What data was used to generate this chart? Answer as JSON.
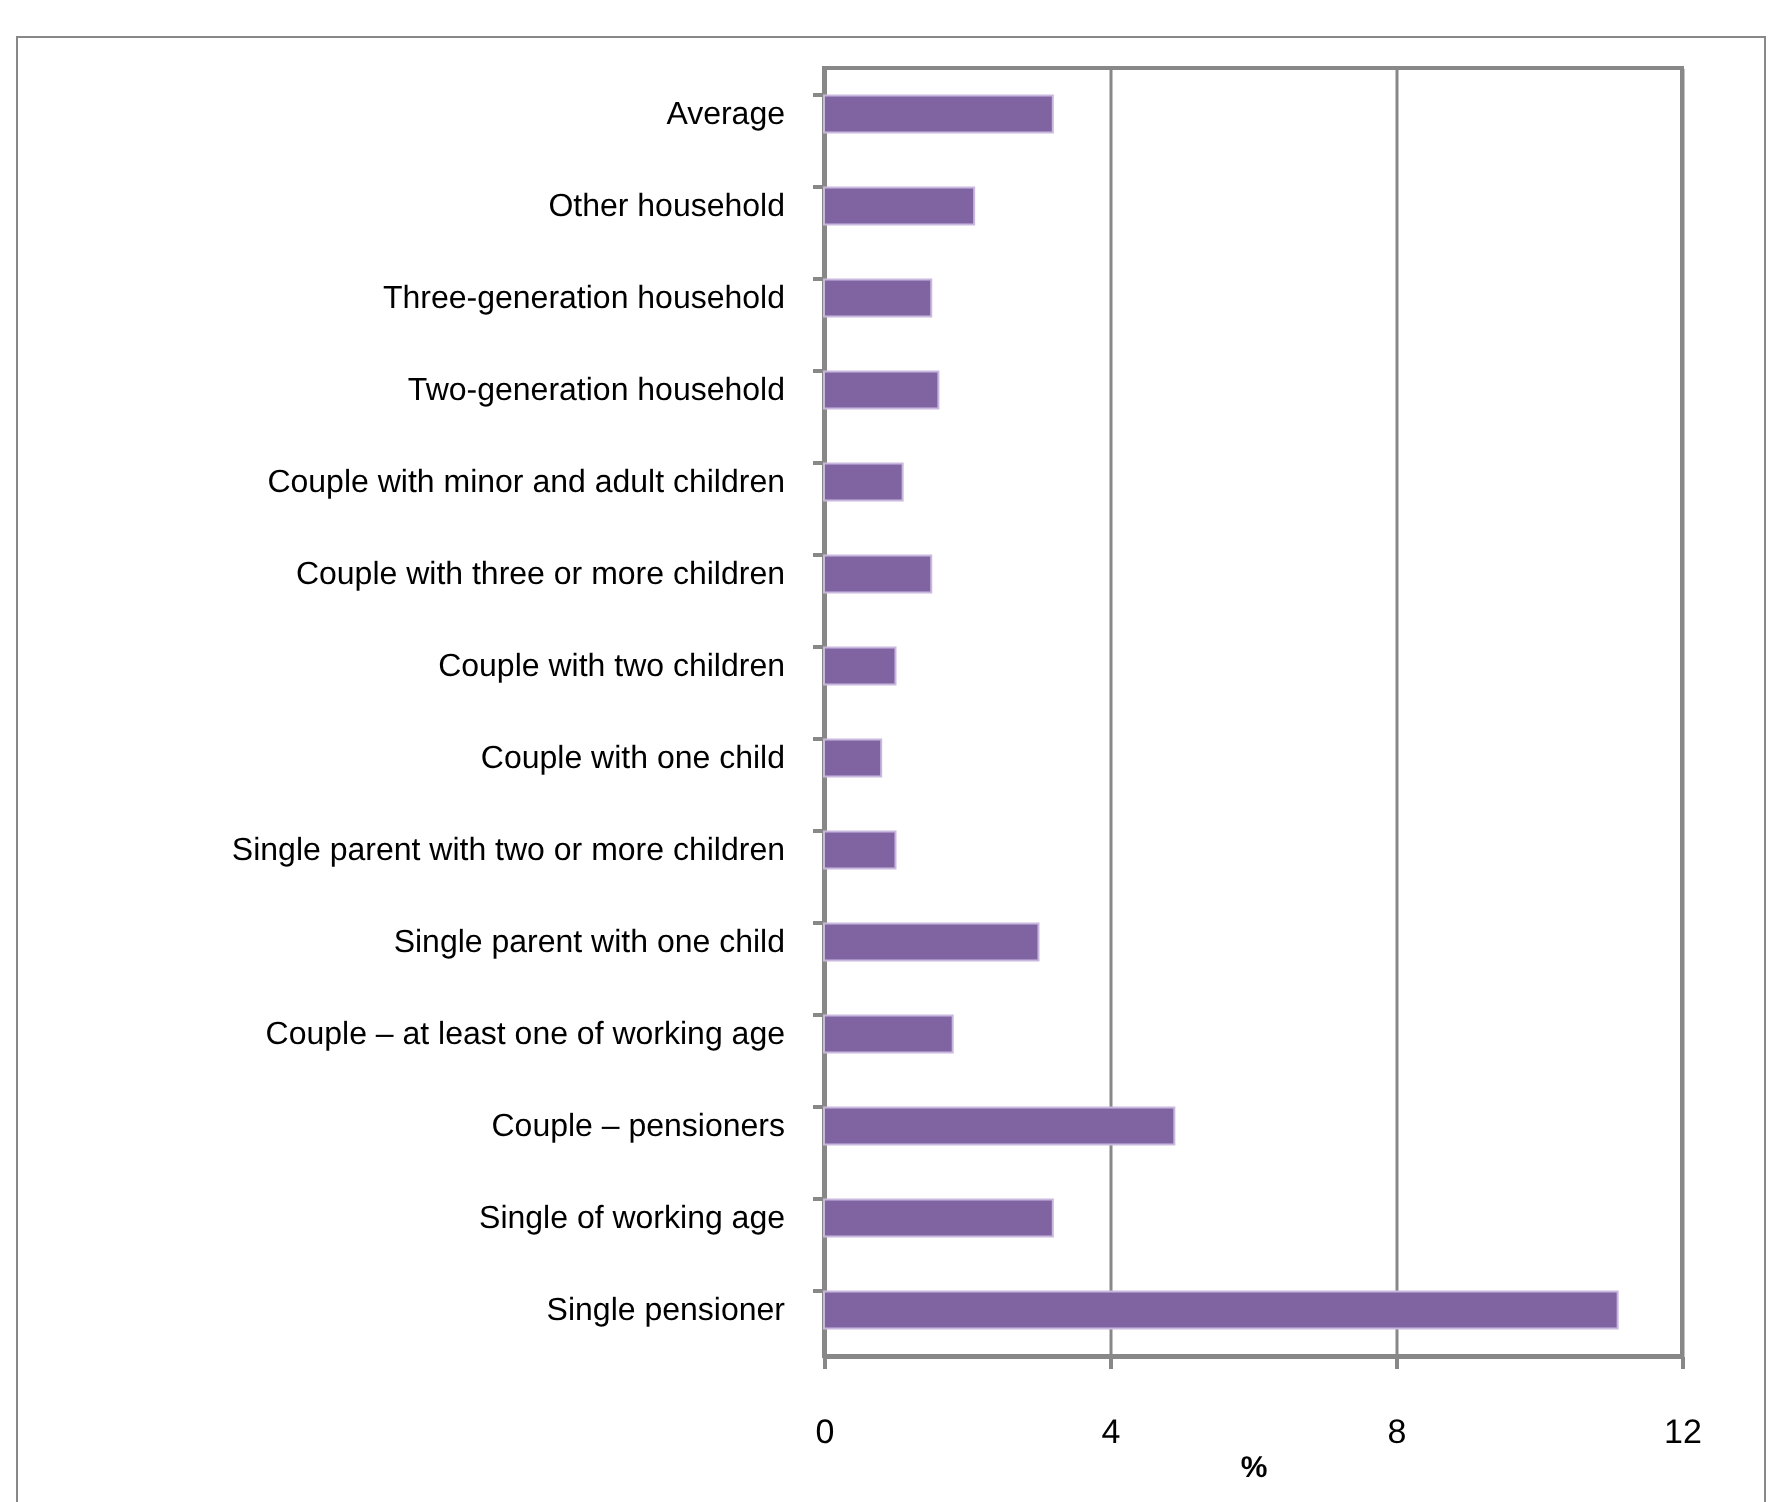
{
  "chart_data": {
    "type": "bar",
    "orientation": "horizontal",
    "xlabel": "%",
    "categories": [
      "Average",
      "Other household",
      "Three-generation household",
      "Two-generation household",
      "Couple with minor and adult children",
      "Couple with three or more children",
      "Couple with two children",
      "Couple with one child",
      "Single parent with two or more children",
      "Single parent with one child",
      "Couple – at least one of working age",
      "Couple – pensioners",
      "Single of working age",
      "Single pensioner"
    ],
    "values": [
      3.2,
      2.1,
      1.5,
      1.6,
      1.1,
      1.5,
      1.0,
      0.8,
      1.0,
      3.0,
      1.8,
      4.9,
      3.2,
      11.1
    ],
    "color": "#8064a2",
    "xlim": [
      0,
      12
    ],
    "xticks": [
      0,
      4,
      8,
      12
    ],
    "grid": "x"
  }
}
